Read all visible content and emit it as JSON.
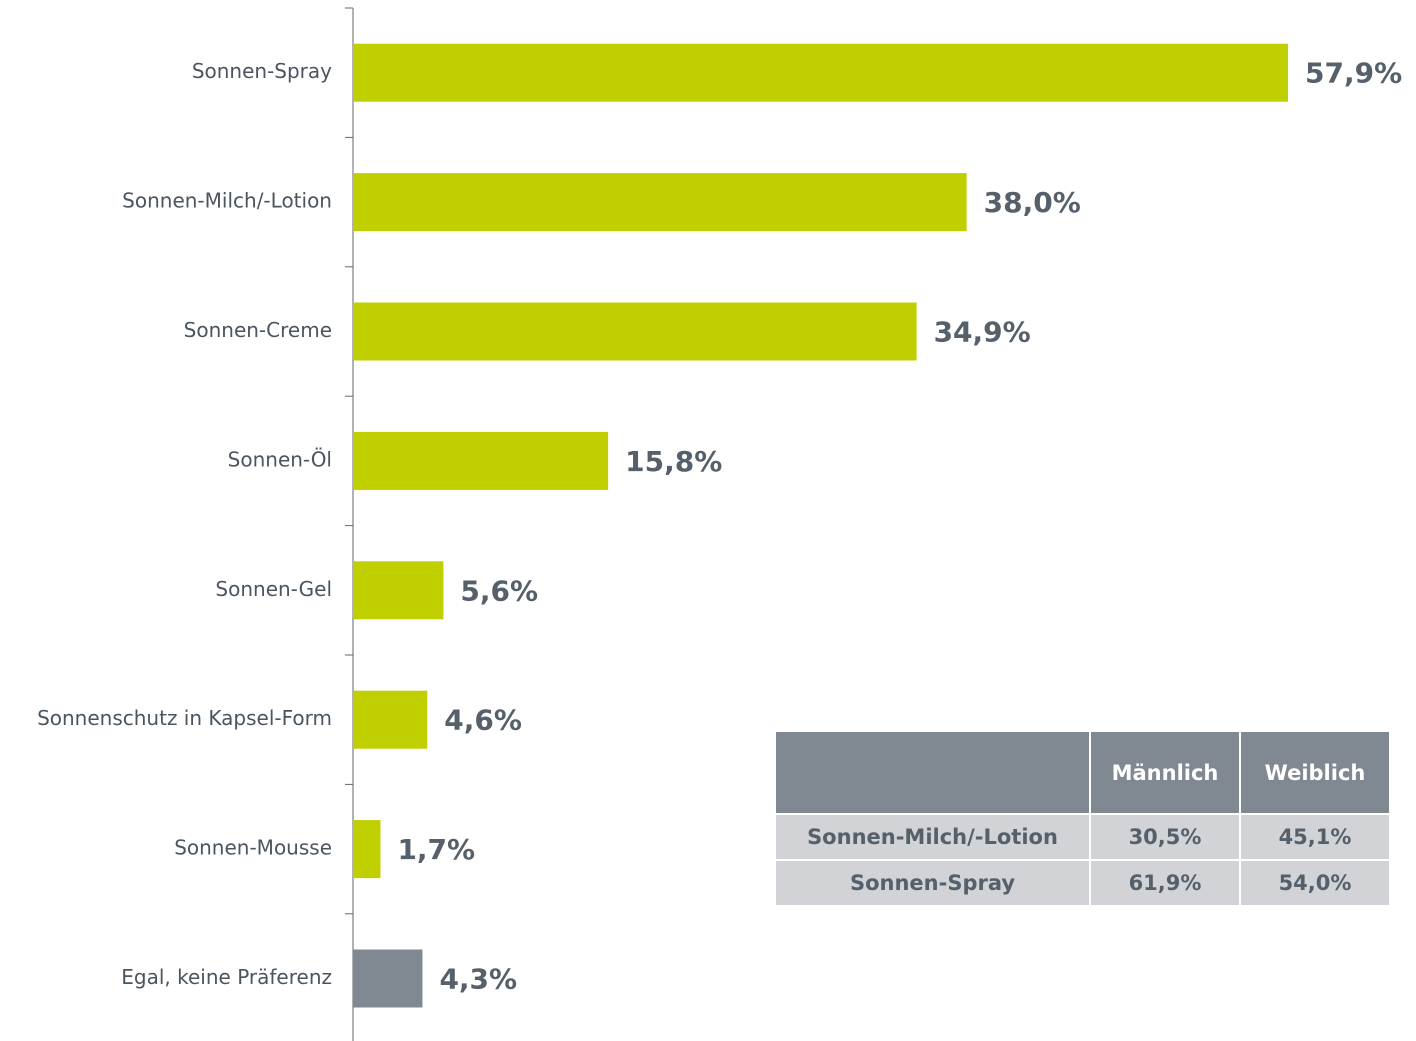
{
  "chart_data": {
    "type": "barh",
    "categories": [
      "Sonnen-Spray",
      "Sonnen-Milch/-Lotion",
      "Sonnen-Creme",
      "Sonnen-Öl",
      "Sonnen-Gel",
      "Sonnenschutz in Kapsel-Form",
      "Sonnen-Mousse",
      "Egal, keine Präferenz"
    ],
    "values": [
      57.9,
      38.0,
      34.9,
      15.8,
      5.6,
      4.6,
      1.7,
      4.3
    ],
    "value_labels": [
      "57,9%",
      "38,0%",
      "34,9%",
      "15,8%",
      "5,6%",
      "4,6%",
      "1,7%",
      "4,3%"
    ],
    "colors": [
      "#bfcf00",
      "#bfcf00",
      "#bfcf00",
      "#bfcf00",
      "#bfcf00",
      "#bfcf00",
      "#bfcf00",
      "#808891"
    ]
  },
  "table": {
    "header": [
      "Männlich",
      "Weiblich"
    ],
    "rows": [
      [
        "Sonnen-Milch/-Lotion",
        "30,5%",
        "45,1%"
      ],
      [
        "Sonnen-Spray",
        "61,9%",
        "54,0%"
      ]
    ]
  }
}
